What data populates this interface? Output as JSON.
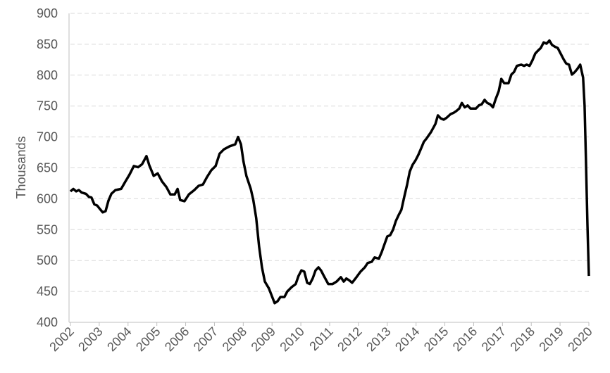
{
  "chart_data": {
    "type": "line",
    "y_label": "Thousands",
    "x": [
      2002.0,
      2002.1,
      2002.2,
      2002.29,
      2002.39,
      2002.54,
      2002.64,
      2002.73,
      2002.83,
      2002.93,
      2003.03,
      2003.12,
      2003.22,
      2003.32,
      2003.42,
      2003.56,
      2003.76,
      2003.91,
      2004.05,
      2004.2,
      2004.35,
      2004.49,
      2004.64,
      2004.74,
      2004.89,
      2005.03,
      2005.18,
      2005.33,
      2005.47,
      2005.62,
      2005.72,
      2005.81,
      2005.96,
      2006.11,
      2006.3,
      2006.45,
      2006.6,
      2006.74,
      2006.89,
      2007.04,
      2007.18,
      2007.33,
      2007.53,
      2007.72,
      2007.82,
      2007.92,
      2008.01,
      2008.11,
      2008.26,
      2008.35,
      2008.45,
      2008.55,
      2008.65,
      2008.75,
      2008.89,
      2008.99,
      2009.09,
      2009.19,
      2009.29,
      2009.43,
      2009.53,
      2009.68,
      2009.82,
      2009.92,
      2010.02,
      2010.12,
      2010.22,
      2010.31,
      2010.41,
      2010.51,
      2010.61,
      2010.7,
      2010.8,
      2010.95,
      2011.1,
      2011.24,
      2011.39,
      2011.49,
      2011.58,
      2011.68,
      2011.78,
      2011.93,
      2012.07,
      2012.22,
      2012.32,
      2012.46,
      2012.56,
      2012.71,
      2012.81,
      2012.9,
      2013.0,
      2013.1,
      2013.2,
      2013.3,
      2013.39,
      2013.49,
      2013.59,
      2013.69,
      2013.78,
      2013.88,
      2013.98,
      2014.08,
      2014.18,
      2014.27,
      2014.37,
      2014.52,
      2014.67,
      2014.76,
      2014.86,
      2014.96,
      2015.06,
      2015.2,
      2015.3,
      2015.4,
      2015.5,
      2015.59,
      2015.69,
      2015.79,
      2015.89,
      2015.99,
      2016.08,
      2016.18,
      2016.28,
      2016.38,
      2016.47,
      2016.57,
      2016.67,
      2016.77,
      2016.87,
      2016.96,
      2017.06,
      2017.21,
      2017.31,
      2017.4,
      2017.5,
      2017.65,
      2017.75,
      2017.84,
      2017.94,
      2018.04,
      2018.14,
      2018.24,
      2018.33,
      2018.43,
      2018.53,
      2018.63,
      2018.72,
      2018.82,
      2018.92,
      2019.02,
      2019.12,
      2019.21,
      2019.31,
      2019.41,
      2019.51,
      2019.6,
      2019.7,
      2019.8,
      2019.85,
      2019.9,
      2019.95,
      2020.0
    ],
    "values": [
      612,
      616,
      612,
      614,
      610,
      608,
      603,
      602,
      591,
      589,
      583,
      578,
      580,
      597,
      608,
      614,
      616,
      628,
      639,
      653,
      651,
      656,
      669,
      654,
      637,
      641,
      628,
      619,
      607,
      607,
      616,
      598,
      596,
      607,
      614,
      621,
      623,
      635,
      646,
      653,
      673,
      680,
      685,
      688,
      700,
      688,
      660,
      637,
      616,
      598,
      569,
      523,
      489,
      466,
      455,
      443,
      431,
      434,
      441,
      441,
      450,
      457,
      462,
      475,
      484,
      482,
      464,
      462,
      471,
      484,
      489,
      484,
      475,
      462,
      462,
      466,
      473,
      466,
      471,
      468,
      464,
      473,
      482,
      489,
      496,
      498,
      505,
      503,
      514,
      526,
      539,
      541,
      550,
      564,
      573,
      582,
      603,
      623,
      644,
      655,
      662,
      671,
      682,
      692,
      698,
      708,
      721,
      735,
      730,
      728,
      731,
      737,
      739,
      742,
      746,
      755,
      748,
      751,
      746,
      746,
      746,
      751,
      753,
      760,
      755,
      753,
      748,
      762,
      774,
      794,
      787,
      787,
      801,
      805,
      815,
      817,
      815,
      817,
      815,
      824,
      835,
      840,
      844,
      853,
      851,
      856,
      849,
      846,
      844,
      835,
      826,
      819,
      817,
      801,
      805,
      810,
      817,
      796,
      751,
      660,
      557,
      475
    ],
    "color": "#000000",
    "xlim": [
      2002,
      2020
    ],
    "xticks": [
      2002,
      2003,
      2004,
      2005,
      2006,
      2007,
      2008,
      2009,
      2010,
      2011,
      2012,
      2013,
      2014,
      2015,
      2016,
      2017,
      2018,
      2019,
      2020
    ],
    "ylim": [
      400,
      900
    ],
    "yticks": [
      400,
      450,
      500,
      550,
      600,
      650,
      700,
      750,
      800,
      850,
      900
    ],
    "grid": true
  }
}
